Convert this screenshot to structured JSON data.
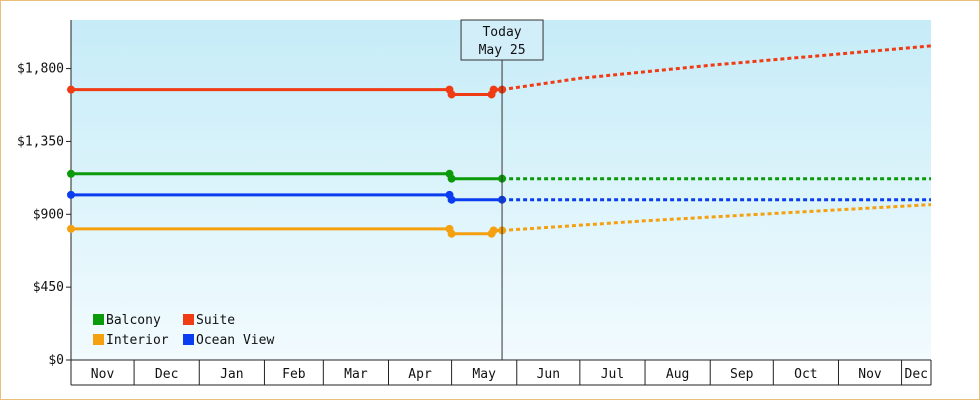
{
  "chart_data": {
    "type": "line",
    "title": "",
    "xlabel": "",
    "ylabel": "",
    "y_ticks": [
      "$0",
      "$450",
      "$900",
      "$1,350",
      "$1,800"
    ],
    "y_tick_values": [
      0,
      450,
      900,
      1350,
      1800
    ],
    "ylim": [
      0,
      2100
    ],
    "x_months": [
      "Nov",
      "Dec",
      "Jan",
      "Feb",
      "Mar",
      "Apr",
      "May",
      "Jun",
      "Jul",
      "Aug",
      "Sep",
      "Oct",
      "Nov",
      "Dec"
    ],
    "xlim": [
      "2024-11-01",
      "2025-12-15"
    ],
    "today": {
      "line1": "Today",
      "line2": "May 25",
      "date": "2025-05-25"
    },
    "grid": false,
    "legend_position": "bottom-left",
    "series": [
      {
        "name": "Suite",
        "color": "#f03c14",
        "history": [
          {
            "date": "2024-11-01",
            "value": 1670
          },
          {
            "date": "2025-04-30",
            "value": 1670
          },
          {
            "date": "2025-05-01",
            "value": 1640
          },
          {
            "date": "2025-05-20",
            "value": 1640
          },
          {
            "date": "2025-05-21",
            "value": 1670
          },
          {
            "date": "2025-05-25",
            "value": 1670
          }
        ],
        "forecast": [
          {
            "date": "2025-05-25",
            "value": 1670
          },
          {
            "date": "2025-07-01",
            "value": 1740
          },
          {
            "date": "2025-09-01",
            "value": 1820
          },
          {
            "date": "2025-12-15",
            "value": 1940
          }
        ]
      },
      {
        "name": "Balcony",
        "color": "#0a9a0a",
        "history": [
          {
            "date": "2024-11-01",
            "value": 1150
          },
          {
            "date": "2025-04-30",
            "value": 1150
          },
          {
            "date": "2025-05-01",
            "value": 1120
          },
          {
            "date": "2025-05-25",
            "value": 1120
          }
        ],
        "forecast": [
          {
            "date": "2025-05-25",
            "value": 1120
          },
          {
            "date": "2025-12-15",
            "value": 1120
          }
        ]
      },
      {
        "name": "Ocean View",
        "color": "#0a3cf0",
        "history": [
          {
            "date": "2024-11-01",
            "value": 1020
          },
          {
            "date": "2025-04-30",
            "value": 1020
          },
          {
            "date": "2025-05-01",
            "value": 990
          },
          {
            "date": "2025-05-25",
            "value": 990
          }
        ],
        "forecast": [
          {
            "date": "2025-05-25",
            "value": 990
          },
          {
            "date": "2025-12-15",
            "value": 990
          }
        ]
      },
      {
        "name": "Interior",
        "color": "#f5a00f",
        "history": [
          {
            "date": "2024-11-01",
            "value": 810
          },
          {
            "date": "2025-04-30",
            "value": 810
          },
          {
            "date": "2025-05-01",
            "value": 780
          },
          {
            "date": "2025-05-20",
            "value": 780
          },
          {
            "date": "2025-05-21",
            "value": 800
          },
          {
            "date": "2025-05-25",
            "value": 800
          }
        ],
        "forecast": [
          {
            "date": "2025-05-25",
            "value": 800
          },
          {
            "date": "2025-08-01",
            "value": 860
          },
          {
            "date": "2025-10-01",
            "value": 905
          },
          {
            "date": "2025-12-15",
            "value": 960
          }
        ]
      }
    ],
    "legend_order": [
      "Balcony",
      "Suite",
      "Interior",
      "Ocean View"
    ]
  }
}
